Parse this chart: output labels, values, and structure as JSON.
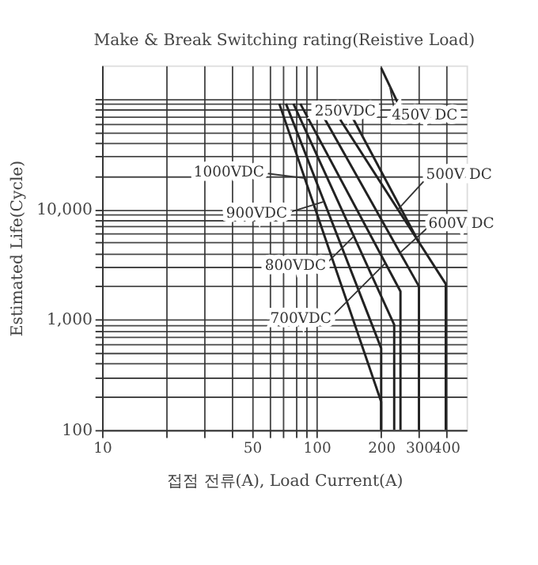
{
  "chart_data": {
    "type": "line",
    "title": "Make & Break Switching rating(Reistive Load)",
    "xlabel": "접점 전류(A), Load Current(A)",
    "ylabel": "Estimated Life(Cycle)",
    "log": "xy",
    "grid": true,
    "legend": false,
    "marker": "none",
    "line_style": "solid",
    "xlim": [
      10,
      500
    ],
    "ylim": [
      100,
      200000
    ],
    "xticks": [
      10,
      {
        "value": 20,
        "label": null
      },
      {
        "value": 30,
        "label": null
      },
      {
        "value": 40,
        "label": null
      },
      50,
      {
        "value": 60,
        "label": null
      },
      {
        "value": 70,
        "label": null
      },
      {
        "value": 80,
        "label": null
      },
      {
        "value": 90,
        "label": null
      },
      100,
      200,
      300,
      400
    ],
    "yticks": [
      100,
      {
        "value": 200,
        "label": null
      },
      {
        "value": 300,
        "label": null
      },
      {
        "value": 400,
        "label": null
      },
      {
        "value": 500,
        "label": null
      },
      {
        "value": 600,
        "label": null
      },
      {
        "value": 700,
        "label": null
      },
      {
        "value": 800,
        "label": null
      },
      {
        "value": 900,
        "label": null
      },
      {
        "value": 1000,
        "label": "1,000"
      },
      {
        "value": 2000,
        "label": null
      },
      {
        "value": 3000,
        "label": null
      },
      {
        "value": 4000,
        "label": null
      },
      {
        "value": 5000,
        "label": null
      },
      {
        "value": 6000,
        "label": null
      },
      {
        "value": 7000,
        "label": null
      },
      {
        "value": 8000,
        "label": null
      },
      {
        "value": 9000,
        "label": null
      },
      {
        "value": 10000,
        "label": "10,000"
      },
      {
        "value": 20000,
        "label": null
      },
      {
        "value": 30000,
        "label": null
      },
      {
        "value": 40000,
        "label": null
      },
      {
        "value": 50000,
        "label": null
      },
      {
        "value": 60000,
        "label": null
      },
      {
        "value": 70000,
        "label": null
      },
      {
        "value": 80000,
        "label": null
      },
      {
        "value": 90000,
        "label": null
      },
      {
        "value": 100000,
        "label": null
      }
    ],
    "series": [
      {
        "color": "#222222",
        "x": [
          67,
          200,
          200
        ],
        "values": [
          90000,
          180,
          100
        ]
      },
      {
        "color": "#222222",
        "x": [
          72,
          200,
          200
        ],
        "values": [
          90000,
          550,
          100
        ]
      },
      {
        "color": "#222222",
        "x": [
          78,
          230,
          230
        ],
        "values": [
          90000,
          900,
          100
        ]
      },
      {
        "color": "#222222",
        "x": [
          84,
          246,
          246
        ],
        "values": [
          90000,
          1800,
          100
        ]
      },
      {
        "color": "#222222",
        "x": [
          109,
          300,
          300
        ],
        "values": [
          66000,
          2000,
          100
        ]
      },
      {
        "color": "#222222",
        "x": [
          128,
          400,
          400
        ],
        "values": [
          66000,
          2100,
          100
        ]
      },
      {
        "color": "#222222",
        "x": [
          148,
          300
        ],
        "values": [
          66000,
          5000
        ]
      },
      {
        "color": "#222222",
        "x": [
          200,
          240
        ],
        "values": [
          190000,
          90000
        ]
      }
    ],
    "annotations": [
      {
        "text": "250VDC",
        "x": 164,
        "y": 44900
      },
      {
        "text": "450V DC",
        "x": 219,
        "y": 131000
      },
      {
        "text": "1000VDC",
        "x": 88,
        "y": 19100
      },
      {
        "text": "500V DC",
        "x": 239,
        "y": 9910
      },
      {
        "text": "900VDC",
        "x": 108,
        "y": 11700
      },
      {
        "text": "600V DC",
        "x": 245,
        "y": 4030
      },
      {
        "text": "800VDC",
        "x": 149,
        "y": 5680
      },
      {
        "text": "700VDC",
        "x": 209,
        "y": 3240
      }
    ]
  }
}
